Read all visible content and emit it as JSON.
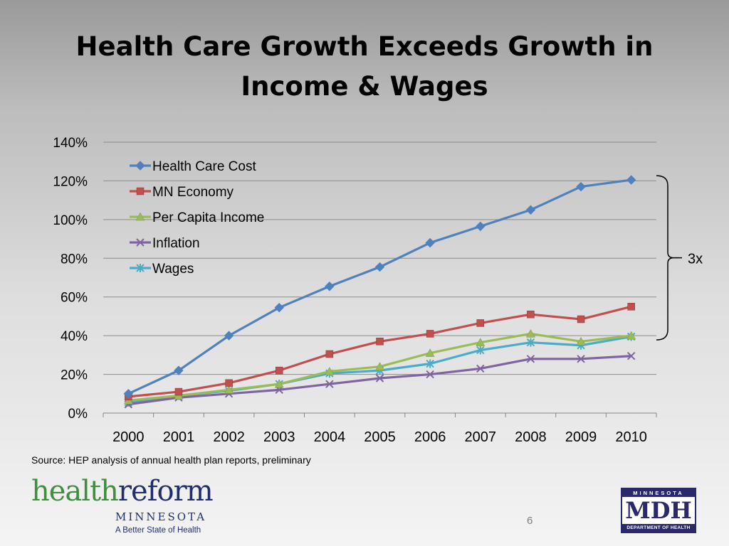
{
  "slide": {
    "title": "Health Care Growth Exceeds Growth in Income & Wages",
    "source": "Source: HEP analysis of annual health plan reports, preliminary",
    "page_number": "6",
    "bracket_label": "3x"
  },
  "logos": {
    "health_reform": {
      "word1": "health",
      "word2": "reform",
      "state": "MINNESOTA",
      "tagline": "A Better State of Health"
    },
    "mdh": {
      "top": "MINNESOTA",
      "middle": "MDH",
      "bottom": "DEPARTMENT OF HEALTH"
    }
  },
  "chart_data": {
    "type": "line",
    "x": [
      "2000",
      "2001",
      "2002",
      "2003",
      "2004",
      "2005",
      "2006",
      "2007",
      "2008",
      "2009",
      "2010"
    ],
    "ylim": [
      0,
      140
    ],
    "yticks": [
      "0%",
      "20%",
      "40%",
      "60%",
      "80%",
      "100%",
      "120%",
      "140%"
    ],
    "grid": true,
    "legend_placement": "top-left",
    "series": [
      {
        "name": "Health Care Cost",
        "color": "#4f81bd",
        "marker": "diamond",
        "values": [
          10,
          22,
          40,
          54.5,
          65.5,
          75.5,
          88,
          96.5,
          105,
          117,
          120.5
        ]
      },
      {
        "name": "MN Economy",
        "color": "#c0504d",
        "marker": "square",
        "values": [
          8.5,
          11,
          15.5,
          22,
          30.5,
          37,
          41,
          46.5,
          51,
          48.5,
          55
        ]
      },
      {
        "name": "Per Capita Income",
        "color": "#9bbb59",
        "marker": "triangle",
        "values": [
          6.5,
          9,
          12,
          15,
          21.5,
          24,
          31,
          36.5,
          41,
          37,
          40
        ]
      },
      {
        "name": "Inflation",
        "color": "#8064a2",
        "marker": "x",
        "values": [
          4.5,
          8,
          10,
          12,
          15,
          18,
          20,
          23,
          28,
          28,
          29.5
        ]
      },
      {
        "name": "Wages",
        "color": "#4bacc6",
        "marker": "star",
        "values": [
          5.5,
          9,
          11.5,
          15,
          20.5,
          22,
          25.5,
          32.5,
          36.5,
          35,
          39.5
        ]
      }
    ]
  }
}
